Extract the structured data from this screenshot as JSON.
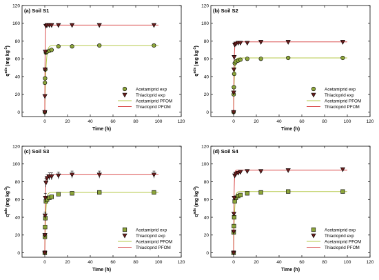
{
  "figure": {
    "legend_labels": {
      "exp1": "Acetamiprid exp",
      "exp2": "Thiacloprid exp",
      "fit1": "Acetamiprid PFOM",
      "fit2": "Thiacloprid PFOM"
    },
    "colors": {
      "acetamiprid_marker": "#8ca53a",
      "thiacloprid_marker": "#6b1d1d",
      "acetamiprid_line": "#b5c94a",
      "thiacloprid_line": "#d94a4a",
      "axis": "#000000"
    }
  },
  "chart_data": [
    {
      "panel": "a",
      "type": "scatter",
      "title": "(a) Soil S1",
      "xlabel": "Time (h)",
      "ylabel": "q",
      "ylabel_sup": "ads",
      "ylabel_unit": " (mg kg",
      "ylabel_unit_sup": "-1",
      "ylabel_unit_end": ")",
      "xlim": [
        -20,
        120
      ],
      "ylim": [
        -5,
        120
      ],
      "xticks": [
        0,
        20,
        40,
        60,
        80,
        100,
        120
      ],
      "yticks": [
        0,
        20,
        40,
        60,
        80,
        100,
        120
      ],
      "series": [
        {
          "name": "Acetamiprid exp",
          "marker": "circle",
          "x": [
            0,
            0.083,
            0.25,
            0.5,
            1,
            2,
            4,
            6,
            12,
            24,
            48,
            96
          ],
          "y": [
            0,
            33,
            38,
            48,
            67,
            68,
            69,
            70,
            74,
            74,
            75,
            75
          ],
          "err": [
            0,
            0,
            0,
            0,
            0,
            0,
            0,
            0,
            0,
            0,
            0,
            0
          ]
        },
        {
          "name": "Thiacloprid exp",
          "marker": "triangle-down",
          "x": [
            0,
            0.083,
            0.25,
            0.5,
            1,
            2,
            4,
            6,
            12,
            24,
            48,
            96
          ],
          "y": [
            0,
            18,
            48,
            68,
            97,
            98,
            98,
            98,
            98,
            98,
            98,
            98
          ],
          "err": [
            0,
            0,
            0,
            0,
            0,
            0,
            0,
            0,
            0,
            0,
            0,
            0
          ]
        },
        {
          "name": "Acetamiprid PFOM",
          "fit": true,
          "qe": 75,
          "k": 1.0,
          "x_end": 100
        },
        {
          "name": "Thiacloprid PFOM",
          "fit": true,
          "qe": 98,
          "k": 4.0,
          "x_end": 100
        }
      ]
    },
    {
      "panel": "b",
      "type": "scatter",
      "title": "(b) Soil S2",
      "xlabel": "Time (h)",
      "ylabel": "q",
      "ylabel_sup": "ads",
      "ylabel_unit": " (mg kg",
      "ylabel_unit_sup": "-1",
      "ylabel_unit_end": ")",
      "xlim": [
        -20,
        120
      ],
      "ylim": [
        -5,
        120
      ],
      "xticks": [
        0,
        20,
        40,
        60,
        80,
        100,
        120
      ],
      "yticks": [
        0,
        20,
        40,
        60,
        80,
        100,
        120
      ],
      "series": [
        {
          "name": "Acetamiprid exp",
          "marker": "circle",
          "x": [
            0,
            0.083,
            0.25,
            0.5,
            1,
            2,
            4,
            6,
            12,
            24,
            48,
            96
          ],
          "y": [
            0,
            20,
            28,
            43,
            55,
            57,
            58,
            59,
            60,
            60,
            61,
            61
          ],
          "err": [
            0,
            0,
            0,
            0,
            0,
            0,
            0,
            0,
            0,
            0,
            0,
            0
          ]
        },
        {
          "name": "Thiacloprid exp",
          "marker": "triangle-down",
          "x": [
            0,
            0.083,
            0.25,
            0.5,
            1,
            2,
            4,
            6,
            12,
            24,
            48,
            96
          ],
          "y": [
            0,
            22,
            48,
            62,
            76,
            77,
            78,
            78,
            78,
            79,
            79,
            79
          ],
          "err": [
            0,
            0,
            0,
            0,
            0,
            0,
            0,
            0,
            0,
            0,
            0,
            0
          ]
        },
        {
          "name": "Acetamiprid PFOM",
          "fit": true,
          "qe": 61,
          "k": 1.5,
          "x_end": 100
        },
        {
          "name": "Thiacloprid PFOM",
          "fit": true,
          "qe": 79,
          "k": 2.5,
          "x_end": 100
        }
      ]
    },
    {
      "panel": "c",
      "type": "scatter",
      "title": "(c) Soil S3",
      "xlabel": "Time (h)",
      "ylabel": "q",
      "ylabel_sup": "ads",
      "ylabel_unit": " (mg kg",
      "ylabel_unit_sup": "-1",
      "ylabel_unit_end": ")",
      "xlim": [
        -20,
        120
      ],
      "ylim": [
        -5,
        120
      ],
      "xticks": [
        0,
        20,
        40,
        60,
        80,
        100,
        120
      ],
      "yticks": [
        0,
        20,
        40,
        60,
        80,
        100,
        120
      ],
      "series": [
        {
          "name": "Acetamiprid exp",
          "marker": "square",
          "x": [
            0,
            0.083,
            0.25,
            0.5,
            1,
            2,
            4,
            6,
            12,
            24,
            48,
            96
          ],
          "y": [
            0,
            18,
            29,
            39,
            58,
            60,
            62,
            63,
            66,
            67,
            68,
            68
          ],
          "err": [
            0,
            0,
            0,
            0,
            0,
            0,
            0,
            0,
            0,
            0,
            0,
            0
          ]
        },
        {
          "name": "Thiacloprid exp",
          "marker": "triangle-down",
          "x": [
            0,
            0.083,
            0.25,
            0.5,
            1,
            2,
            4,
            6,
            12,
            24,
            48,
            96
          ],
          "y": [
            0,
            20,
            42,
            62,
            79,
            84,
            86,
            86,
            87,
            88,
            88,
            88
          ],
          "err": [
            0,
            0,
            4,
            5,
            5,
            4,
            4,
            4,
            4,
            4,
            4,
            4
          ]
        },
        {
          "name": "Acetamiprid PFOM",
          "fit": true,
          "qe": 68,
          "k": 1.2,
          "x_end": 100
        },
        {
          "name": "Thiacloprid PFOM",
          "fit": true,
          "qe": 88,
          "k": 2.2,
          "x_end": 100
        }
      ]
    },
    {
      "panel": "d",
      "type": "scatter",
      "title": "(d) Soil S4",
      "xlabel": "Time (h)",
      "ylabel": "q",
      "ylabel_sup": "ads",
      "ylabel_unit": " (mg kg",
      "ylabel_unit_sup": "-1",
      "ylabel_unit_end": ")",
      "xlim": [
        -20,
        120
      ],
      "ylim": [
        -5,
        120
      ],
      "xticks": [
        0,
        20,
        40,
        60,
        80,
        100,
        120
      ],
      "yticks": [
        0,
        20,
        40,
        60,
        80,
        100,
        120
      ],
      "series": [
        {
          "name": "Acetamiprid exp",
          "marker": "square",
          "x": [
            0,
            0.083,
            0.25,
            0.5,
            1,
            2,
            4,
            6,
            12,
            24,
            48,
            96
          ],
          "y": [
            0,
            23,
            30,
            40,
            58,
            62,
            64,
            65,
            67,
            68,
            69,
            69
          ],
          "err": [
            0,
            0,
            0,
            0,
            0,
            0,
            0,
            0,
            0,
            0,
            0,
            0
          ]
        },
        {
          "name": "Thiacloprid exp",
          "marker": "triangle-down",
          "x": [
            0,
            0.083,
            0.25,
            0.5,
            1,
            2,
            4,
            6,
            12,
            24,
            48,
            96
          ],
          "y": [
            0,
            24,
            44,
            62,
            87,
            89,
            90,
            91,
            92,
            92,
            93,
            94
          ],
          "err": [
            0,
            0,
            0,
            0,
            0,
            0,
            0,
            0,
            0,
            0,
            0,
            0
          ]
        },
        {
          "name": "Acetamiprid PFOM",
          "fit": true,
          "qe": 69,
          "k": 1.3,
          "x_end": 100
        },
        {
          "name": "Thiacloprid PFOM",
          "fit": true,
          "qe": 93,
          "k": 2.8,
          "x_end": 100
        }
      ]
    }
  ]
}
